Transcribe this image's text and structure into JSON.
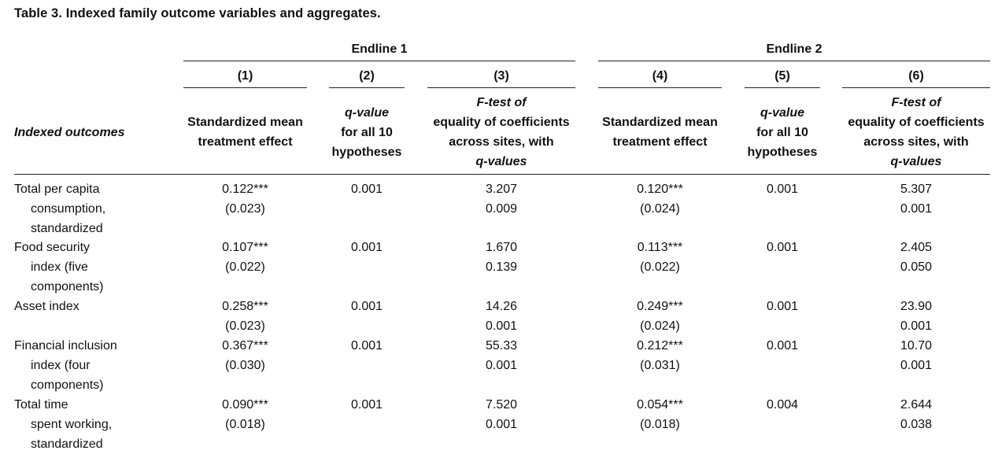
{
  "caption": "Table 3. Indexed family outcome variables and aggregates.",
  "groups": [
    {
      "label": "Endline 1"
    },
    {
      "label": "Endline 2"
    }
  ],
  "columns": [
    {
      "num": "(1)",
      "lines": [
        "Standardized mean",
        "treatment effect"
      ]
    },
    {
      "num": "(2)",
      "lines": [
        "q-value",
        "for all 10",
        "hypotheses"
      ]
    },
    {
      "num": "(3)",
      "lines": [
        "F-test of",
        "equality of coefficients",
        "across sites, with",
        "q-values"
      ]
    },
    {
      "num": "(4)",
      "lines": [
        "Standardized mean",
        "treatment effect"
      ]
    },
    {
      "num": "(5)",
      "lines": [
        "q-value",
        "for all 10",
        "hypotheses"
      ]
    },
    {
      "num": "(6)",
      "lines": [
        "F-test of",
        "equality of coefficients",
        "across sites, with",
        "q-values"
      ]
    }
  ],
  "row_header": "Indexed outcomes",
  "rows": [
    {
      "label": [
        "Total per capita",
        "consumption,",
        "standardized"
      ],
      "c1": [
        "0.122***",
        "(0.023)"
      ],
      "c2": "0.001",
      "c3": [
        "3.207",
        "0.009"
      ],
      "c4": [
        "0.120***",
        "(0.024)"
      ],
      "c5": "0.001",
      "c6": [
        "5.307",
        "0.001"
      ]
    },
    {
      "label": [
        "Food security",
        "index (five",
        "components)"
      ],
      "c1": [
        "0.107***",
        "(0.022)"
      ],
      "c2": "0.001",
      "c3": [
        "1.670",
        "0.139"
      ],
      "c4": [
        "0.113***",
        "(0.022)"
      ],
      "c5": "0.001",
      "c6": [
        "2.405",
        "0.050"
      ]
    },
    {
      "label": [
        "Asset index"
      ],
      "c1": [
        "0.258***",
        "(0.023)"
      ],
      "c2": "0.001",
      "c3": [
        "14.26",
        "0.001"
      ],
      "c4": [
        "0.249***",
        "(0.024)"
      ],
      "c5": "0.001",
      "c6": [
        "23.90",
        "0.001"
      ]
    },
    {
      "label": [
        "Financial inclusion",
        "index (four",
        "components)"
      ],
      "c1": [
        "0.367***",
        "(0.030)"
      ],
      "c2": "0.001",
      "c3": [
        "55.33",
        "0.001"
      ],
      "c4": [
        "0.212***",
        "(0.031)"
      ],
      "c5": "0.001",
      "c6": [
        "10.70",
        "0.001"
      ]
    },
    {
      "label": [
        "Total time",
        "spent working,",
        "standardized"
      ],
      "c1": [
        "0.090***",
        "(0.018)"
      ],
      "c2": "0.001",
      "c3": [
        "7.520",
        "0.001"
      ],
      "c4": [
        "0.054***",
        "(0.018)"
      ],
      "c5": "0.004",
      "c6": [
        "2.644",
        "0.038"
      ]
    }
  ]
}
